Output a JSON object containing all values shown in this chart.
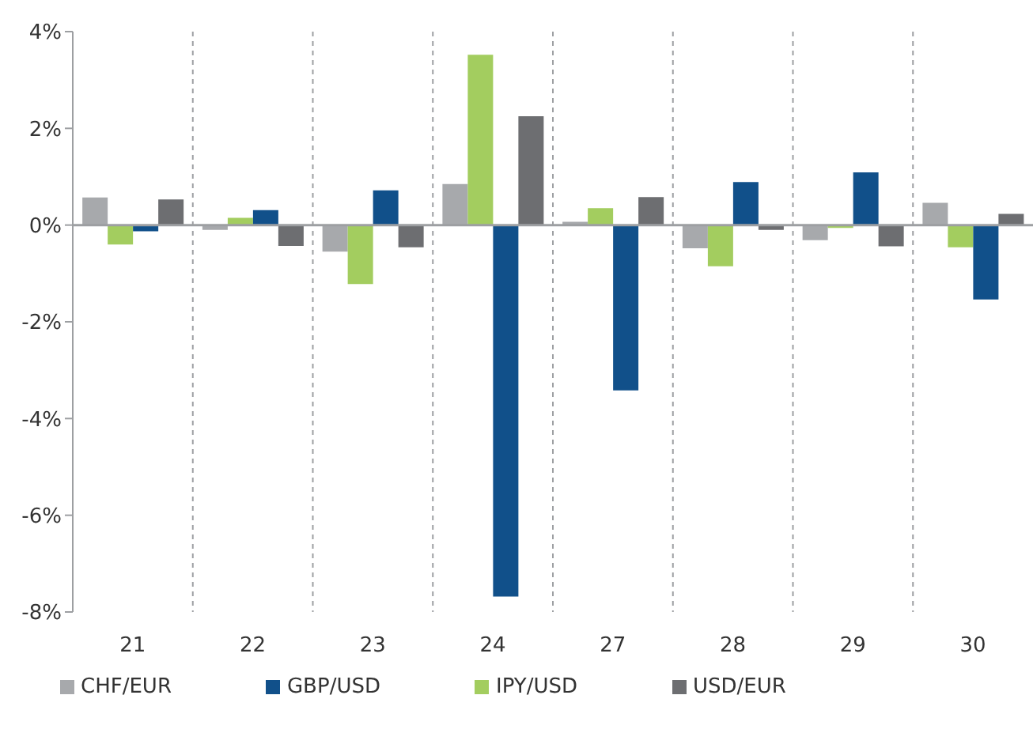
{
  "chart_data": {
    "type": "bar",
    "categories": [
      "21",
      "22",
      "23",
      "24",
      "27",
      "28",
      "29",
      "30"
    ],
    "series": [
      {
        "name": "CHF/EUR",
        "color": "#a7a9ac",
        "values": [
          0.57,
          -0.1,
          -0.55,
          0.85,
          0.07,
          -0.48,
          -0.31,
          0.46
        ]
      },
      {
        "name": "IPY/USD",
        "color": "#a3cd5f",
        "values": [
          -0.4,
          0.15,
          -1.22,
          3.52,
          0.35,
          -0.85,
          -0.06,
          -0.46
        ]
      },
      {
        "name": "GBP/USD",
        "color": "#11508a",
        "values": [
          -0.13,
          0.31,
          0.72,
          -7.68,
          -3.42,
          0.89,
          1.09,
          -1.54
        ]
      },
      {
        "name": "USD/EUR",
        "color": "#6d6e71",
        "values": [
          0.53,
          -0.43,
          -0.46,
          2.25,
          0.58,
          -0.1,
          -0.44,
          0.23
        ]
      }
    ],
    "ylim": [
      -8,
      4
    ],
    "yticks": [
      {
        "value": -8,
        "label": "-8%"
      },
      {
        "value": -6,
        "label": "-6%"
      },
      {
        "value": -4,
        "label": "-4%"
      },
      {
        "value": -2,
        "label": "-2%"
      },
      {
        "value": 0,
        "label": "0%"
      },
      {
        "value": 2,
        "label": "2%"
      },
      {
        "value": 4,
        "label": "4%"
      }
    ],
    "grid": "x",
    "legend": "bottom left"
  }
}
